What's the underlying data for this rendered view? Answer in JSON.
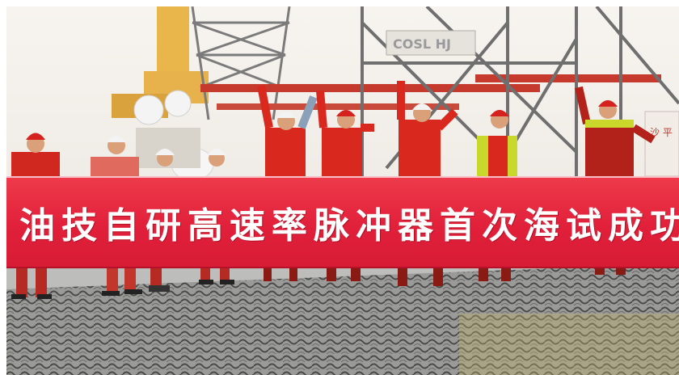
{
  "photo": {
    "description_colors": {
      "banner_red": "#e1203a",
      "banner_text": "#ffffff",
      "coverall_red": "#d9281e",
      "helmet_red": "#d6221f",
      "helmet_white": "#f3f3f3",
      "hi_vis_yellow": "#c9d82a"
    },
    "rig_sign_text": "COSL HJ",
    "side_sign_text": "沙 平",
    "banner_text": "油技自研高速率脉冲器首次海试成功"
  }
}
